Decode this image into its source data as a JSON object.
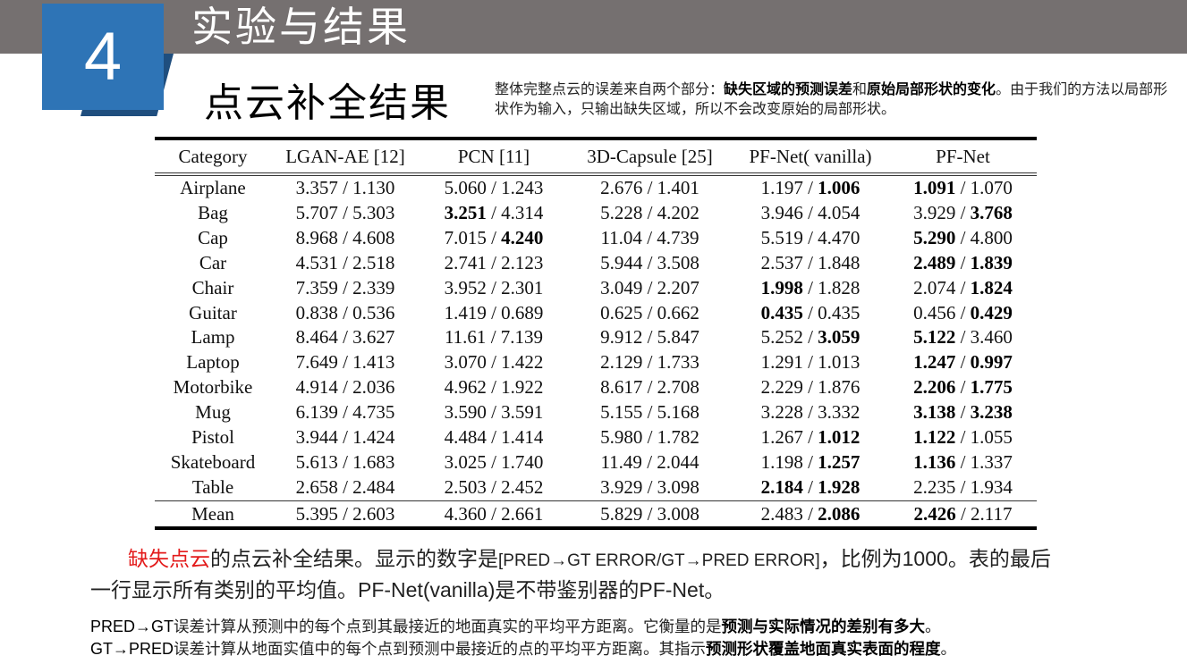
{
  "header": {
    "section_number": "4",
    "section_title": "实验与结果",
    "bar_color": "#757070",
    "badge_color": "#2e74b6",
    "badge_shadow_color": "#1f4e7e"
  },
  "slide": {
    "subtitle": "点云补全结果",
    "note": {
      "part1": "整体完整点云的误差来自两个部分：",
      "bold1": "缺失区域的预测误差",
      "part2": "和",
      "bold2": "原始局部形状的变化",
      "part3": "。由于我们的方法以局部形状作为输入，只输出缺失区域，所以不会改变原始的局部形状。"
    }
  },
  "table": {
    "headers": [
      "Category",
      "LGAN-AE [12]",
      "PCN [11]",
      "3D-Capsule [25]",
      "PF-Net( vanilla)",
      "PF-Net"
    ],
    "separator": " / ",
    "rows": [
      {
        "category": "Airplane",
        "cells": [
          [
            "3.357",
            "1.130",
            0,
            0
          ],
          [
            "5.060",
            "1.243",
            0,
            0
          ],
          [
            "2.676",
            "1.401",
            0,
            0
          ],
          [
            "1.197",
            "1.006",
            0,
            1
          ],
          [
            "1.091",
            "1.070",
            1,
            0
          ]
        ]
      },
      {
        "category": "Bag",
        "cells": [
          [
            "5.707",
            "5.303",
            0,
            0
          ],
          [
            "3.251",
            "4.314",
            1,
            0
          ],
          [
            "5.228",
            "4.202",
            0,
            0
          ],
          [
            "3.946",
            "4.054",
            0,
            0
          ],
          [
            "3.929",
            "3.768",
            0,
            1
          ]
        ]
      },
      {
        "category": "Cap",
        "cells": [
          [
            "8.968",
            "4.608",
            0,
            0
          ],
          [
            "7.015",
            "4.240",
            0,
            1
          ],
          [
            "11.04",
            "4.739",
            0,
            0
          ],
          [
            "5.519",
            "4.470",
            0,
            0
          ],
          [
            "5.290",
            "4.800",
            1,
            0
          ]
        ]
      },
      {
        "category": "Car",
        "cells": [
          [
            "4.531",
            "2.518",
            0,
            0
          ],
          [
            "2.741",
            "2.123",
            0,
            0
          ],
          [
            "5.944",
            "3.508",
            0,
            0
          ],
          [
            "2.537",
            "1.848",
            0,
            0
          ],
          [
            "2.489",
            "1.839",
            1,
            1
          ]
        ]
      },
      {
        "category": "Chair",
        "cells": [
          [
            "7.359",
            "2.339",
            0,
            0
          ],
          [
            "3.952",
            "2.301",
            0,
            0
          ],
          [
            "3.049",
            "2.207",
            0,
            0
          ],
          [
            "1.998",
            "1.828",
            1,
            0
          ],
          [
            "2.074",
            "1.824",
            0,
            1
          ]
        ]
      },
      {
        "category": "Guitar",
        "cells": [
          [
            "0.838",
            "0.536",
            0,
            0
          ],
          [
            "1.419",
            "0.689",
            0,
            0
          ],
          [
            "0.625",
            "0.662",
            0,
            0
          ],
          [
            "0.435",
            "0.435",
            1,
            0
          ],
          [
            "0.456",
            "0.429",
            0,
            1
          ]
        ]
      },
      {
        "category": "Lamp",
        "cells": [
          [
            "8.464",
            "3.627",
            0,
            0
          ],
          [
            "11.61",
            "7.139",
            0,
            0
          ],
          [
            "9.912",
            "5.847",
            0,
            0
          ],
          [
            "5.252",
            "3.059",
            0,
            1
          ],
          [
            "5.122",
            "3.460",
            1,
            0
          ]
        ]
      },
      {
        "category": "Laptop",
        "cells": [
          [
            "7.649",
            "1.413",
            0,
            0
          ],
          [
            "3.070",
            "1.422",
            0,
            0
          ],
          [
            "2.129",
            "1.733",
            0,
            0
          ],
          [
            "1.291",
            "1.013",
            0,
            0
          ],
          [
            "1.247",
            "0.997",
            1,
            1
          ]
        ]
      },
      {
        "category": "Motorbike",
        "cells": [
          [
            "4.914",
            "2.036",
            0,
            0
          ],
          [
            "4.962",
            "1.922",
            0,
            0
          ],
          [
            "8.617",
            "2.708",
            0,
            0
          ],
          [
            "2.229",
            "1.876",
            0,
            0
          ],
          [
            "2.206",
            "1.775",
            1,
            1
          ]
        ]
      },
      {
        "category": "Mug",
        "cells": [
          [
            "6.139",
            "4.735",
            0,
            0
          ],
          [
            "3.590",
            "3.591",
            0,
            0
          ],
          [
            "5.155",
            "5.168",
            0,
            0
          ],
          [
            "3.228",
            "3.332",
            0,
            0
          ],
          [
            "3.138",
            "3.238",
            1,
            1
          ]
        ]
      },
      {
        "category": "Pistol",
        "cells": [
          [
            "3.944",
            "1.424",
            0,
            0
          ],
          [
            "4.484",
            "1.414",
            0,
            0
          ],
          [
            "5.980",
            "1.782",
            0,
            0
          ],
          [
            "1.267",
            "1.012",
            0,
            1
          ],
          [
            "1.122",
            "1.055",
            1,
            0
          ]
        ]
      },
      {
        "category": "Skateboard",
        "cells": [
          [
            "5.613",
            "1.683",
            0,
            0
          ],
          [
            "3.025",
            "1.740",
            0,
            0
          ],
          [
            "11.49",
            "2.044",
            0,
            0
          ],
          [
            "1.198",
            "1.257",
            0,
            1
          ],
          [
            "1.136",
            "1.337",
            1,
            0
          ]
        ]
      },
      {
        "category": "Table",
        "cells": [
          [
            "2.658",
            "2.484",
            0,
            0
          ],
          [
            "2.503",
            "2.452",
            0,
            0
          ],
          [
            "3.929",
            "3.098",
            0,
            0
          ],
          [
            "2.184",
            "1.928",
            1,
            1
          ],
          [
            "2.235",
            "1.934",
            0,
            0
          ]
        ]
      }
    ],
    "mean": {
      "category": "Mean",
      "cells": [
        [
          "5.395",
          "2.603",
          0,
          0
        ],
        [
          "4.360",
          "2.661",
          0,
          0
        ],
        [
          "5.829",
          "3.008",
          0,
          0
        ],
        [
          "2.483",
          "2.086",
          0,
          1
        ],
        [
          "2.426",
          "2.117",
          1,
          0
        ]
      ]
    }
  },
  "caption": {
    "red": "缺失点云",
    "t1": "的点云补全结果。显示的数字是",
    "t2": "[PRED→GT ERROR/GT→PRED ERROR]",
    "t3": "，比例为",
    "t4": "1000",
    "t5": "。表的最后一行显示所有类别的平均值。",
    "t6": "PF-Net(vanilla)",
    "t7": "是不带鉴别器的",
    "t8": "PF-Net",
    "t9": "。",
    "highlight_color": "#e31b1b"
  },
  "definitions": [
    {
      "term": "PRED→GT",
      "text": "误差计算从预测中的每个点到其最接近的地面真实的平均平方距离。它衡量的是",
      "bold": "预测与实际情况的差别有多大",
      "end": "。"
    },
    {
      "term": "GT→PRED",
      "text": "误差计算从地面实值中的每个点到预测中最接近的点的平均平方距离。其指示",
      "bold": "预测形状覆盖地面真实表面的程度",
      "end": "。"
    }
  ]
}
